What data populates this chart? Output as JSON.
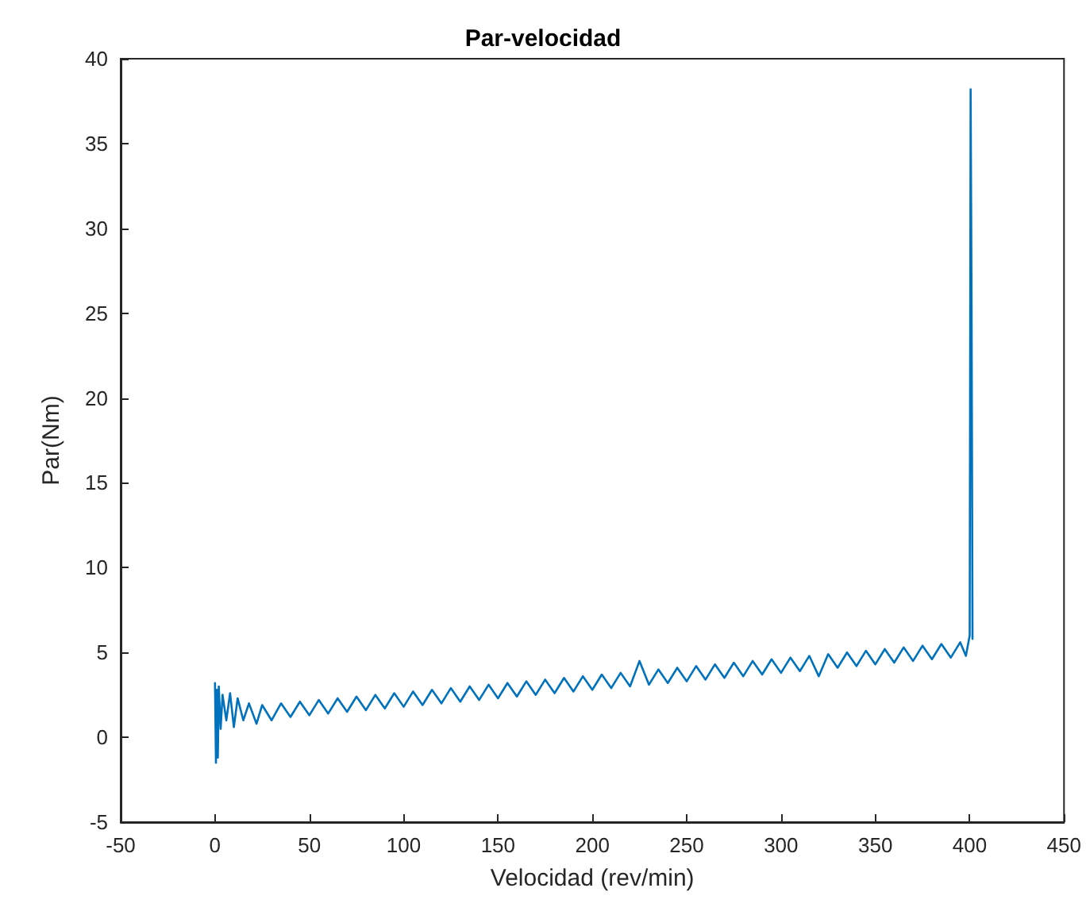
{
  "chart_data": {
    "type": "line",
    "title": "Par-velocidad",
    "xlabel": "Velocidad (rev/min)",
    "ylabel": "Par(Nm)",
    "xlim": [
      -50,
      450
    ],
    "xticks": [
      -50,
      0,
      50,
      100,
      150,
      200,
      250,
      300,
      350,
      400,
      450
    ],
    "ylim": [
      -5,
      40
    ],
    "yticks": [
      -5,
      0,
      5,
      10,
      15,
      20,
      25,
      30,
      35,
      40
    ],
    "grid": false,
    "marker": "none",
    "line_style": "solid",
    "series": [
      {
        "color": "#0072bd",
        "x": [
          0,
          0.5,
          1,
          1.5,
          2,
          3,
          4,
          6,
          8,
          10,
          12,
          15,
          18,
          22,
          25,
          30,
          35,
          40,
          45,
          50,
          55,
          60,
          65,
          70,
          75,
          80,
          85,
          90,
          95,
          100,
          105,
          110,
          115,
          120,
          125,
          130,
          135,
          140,
          145,
          150,
          155,
          160,
          165,
          170,
          175,
          180,
          185,
          190,
          195,
          200,
          205,
          210,
          215,
          220,
          225,
          230,
          235,
          240,
          245,
          250,
          255,
          260,
          265,
          270,
          275,
          280,
          285,
          290,
          295,
          300,
          305,
          310,
          315,
          320,
          325,
          330,
          335,
          340,
          345,
          350,
          355,
          360,
          365,
          370,
          375,
          380,
          385,
          390,
          395,
          398,
          400,
          400.5,
          401,
          401.5
        ],
        "values": [
          3.2,
          -1.5,
          2.8,
          -1.2,
          3.0,
          0.5,
          2.5,
          1.0,
          2.6,
          0.6,
          2.3,
          1.0,
          2.0,
          0.8,
          1.9,
          1.0,
          2.0,
          1.2,
          2.1,
          1.3,
          2.2,
          1.4,
          2.3,
          1.5,
          2.4,
          1.6,
          2.5,
          1.7,
          2.6,
          1.8,
          2.7,
          1.9,
          2.8,
          2.0,
          2.9,
          2.1,
          3.0,
          2.2,
          3.1,
          2.3,
          3.2,
          2.4,
          3.3,
          2.5,
          3.4,
          2.6,
          3.5,
          2.7,
          3.6,
          2.8,
          3.7,
          2.9,
          3.8,
          3.0,
          4.5,
          3.1,
          4.0,
          3.2,
          4.1,
          3.3,
          4.2,
          3.4,
          4.3,
          3.5,
          4.4,
          3.6,
          4.5,
          3.7,
          4.6,
          3.8,
          4.7,
          3.9,
          4.8,
          3.6,
          4.9,
          4.1,
          5.0,
          4.2,
          5.1,
          4.3,
          5.2,
          4.4,
          5.3,
          4.5,
          5.4,
          4.6,
          5.5,
          4.7,
          5.6,
          4.8,
          6.0,
          38.2,
          25.5,
          5.8
        ]
      }
    ]
  }
}
